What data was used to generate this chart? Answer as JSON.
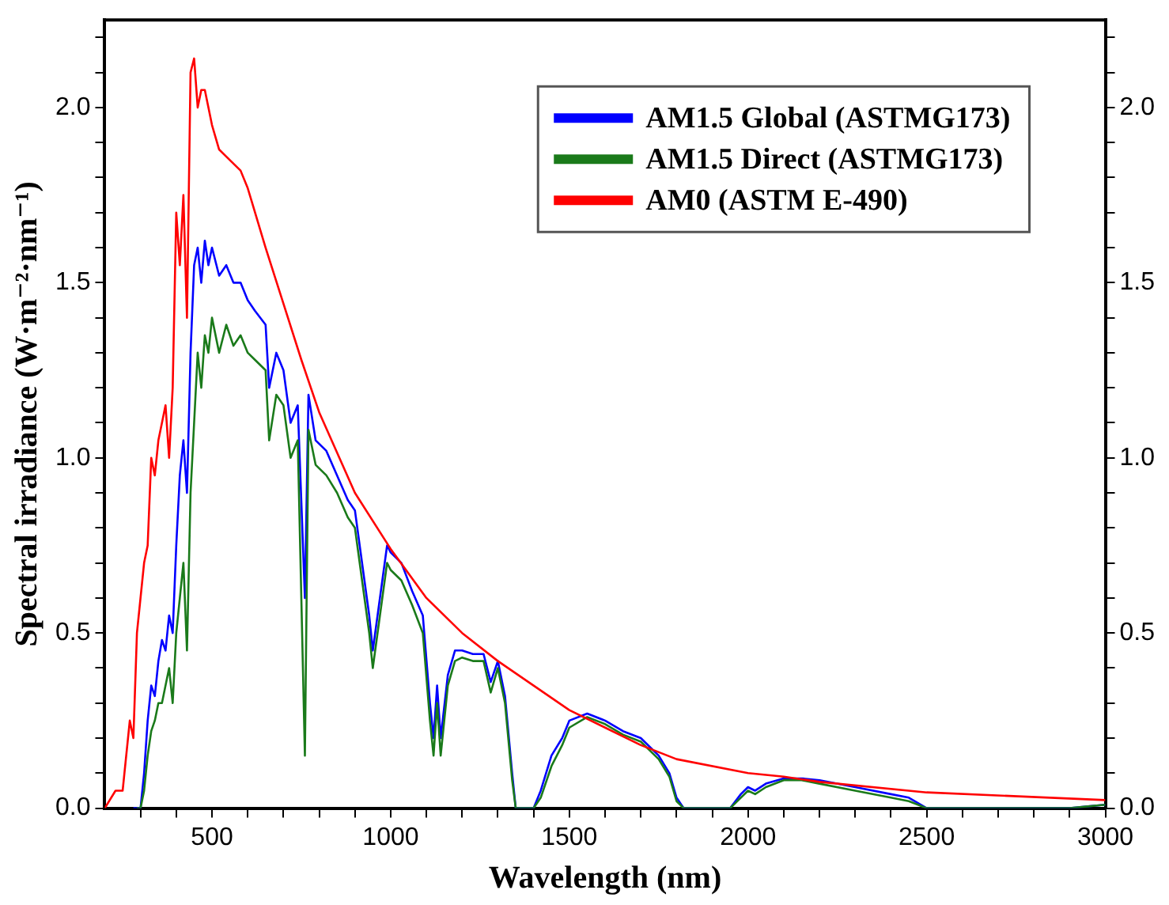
{
  "chart_data": {
    "type": "line",
    "xlabel": "Wavelength (nm)",
    "ylabel": "Spectral irradiance (W·m⁻²·nm⁻¹)",
    "xlim": [
      200,
      3000
    ],
    "xticks": [
      {
        "value": 300,
        "label": null
      },
      {
        "value": 400,
        "label": null
      },
      500,
      {
        "value": 600,
        "label": null
      },
      {
        "value": 700,
        "label": null
      },
      {
        "value": 800,
        "label": null
      },
      {
        "value": 900,
        "label": null
      },
      1000,
      {
        "value": 1100,
        "label": null
      },
      {
        "value": 1200,
        "label": null
      },
      {
        "value": 1300,
        "label": null
      },
      {
        "value": 1400,
        "label": null
      },
      1500,
      {
        "value": 1600,
        "label": null
      },
      {
        "value": 1700,
        "label": null
      },
      {
        "value": 1800,
        "label": null
      },
      {
        "value": 1900,
        "label": null
      },
      2000,
      {
        "value": 2100,
        "label": null
      },
      {
        "value": 2200,
        "label": null
      },
      {
        "value": 2300,
        "label": null
      },
      {
        "value": 2400,
        "label": null
      },
      2500,
      {
        "value": 2600,
        "label": null
      },
      {
        "value": 2700,
        "label": null
      },
      {
        "value": 2800,
        "label": null
      },
      {
        "value": 2900,
        "label": null
      },
      3000
    ],
    "ylim": [
      0,
      2.25
    ],
    "yticks": [
      {
        "value": 0,
        "label": "0.0"
      },
      {
        "value": 0.1,
        "label": null
      },
      {
        "value": 0.2,
        "label": null
      },
      {
        "value": 0.3,
        "label": null
      },
      {
        "value": 0.4,
        "label": null
      },
      0.5,
      {
        "value": 0.6,
        "label": null
      },
      {
        "value": 0.7,
        "label": null
      },
      {
        "value": 0.8,
        "label": null
      },
      {
        "value": 0.9,
        "label": null
      },
      {
        "value": 1,
        "label": "1.0"
      },
      {
        "value": 1.1,
        "label": null
      },
      {
        "value": 1.2,
        "label": null
      },
      {
        "value": 1.3,
        "label": null
      },
      {
        "value": 1.4,
        "label": null
      },
      1.5,
      {
        "value": 1.6,
        "label": null
      },
      {
        "value": 1.7,
        "label": null
      },
      {
        "value": 1.8,
        "label": null
      },
      {
        "value": 1.9,
        "label": null
      },
      {
        "value": 2,
        "label": "2.0"
      },
      {
        "value": 2.1,
        "label": null
      },
      {
        "value": 2.2,
        "label": null
      }
    ],
    "y2lim": [
      0,
      2.25
    ],
    "y2ticks": [
      {
        "value": 0,
        "label": "0.0"
      },
      {
        "value": 0.1,
        "label": null
      },
      {
        "value": 0.2,
        "label": null
      },
      {
        "value": 0.3,
        "label": null
      },
      {
        "value": 0.4,
        "label": null
      },
      0.5,
      {
        "value": 0.6,
        "label": null
      },
      {
        "value": 0.7,
        "label": null
      },
      {
        "value": 0.8,
        "label": null
      },
      {
        "value": 0.9,
        "label": null
      },
      {
        "value": 1,
        "label": "1.0"
      },
      {
        "value": 1.1,
        "label": null
      },
      {
        "value": 1.2,
        "label": null
      },
      {
        "value": 1.3,
        "label": null
      },
      {
        "value": 1.4,
        "label": null
      },
      1.5,
      {
        "value": 1.6,
        "label": null
      },
      {
        "value": 1.7,
        "label": null
      },
      {
        "value": 1.8,
        "label": null
      },
      {
        "value": 1.9,
        "label": null
      },
      {
        "value": 2,
        "label": "2.0"
      },
      {
        "value": 2.1,
        "label": null
      },
      {
        "value": 2.2,
        "label": null
      }
    ],
    "legend": "top right",
    "marker": "none",
    "series": [
      {
        "name": "AM1.5 Global (ASTMG173)",
        "color": "#0000ff",
        "x": [
          280,
          300,
          310,
          320,
          330,
          340,
          350,
          360,
          370,
          380,
          390,
          400,
          410,
          420,
          430,
          440,
          450,
          460,
          470,
          480,
          490,
          500,
          520,
          540,
          560,
          580,
          600,
          620,
          650,
          660,
          680,
          700,
          720,
          740,
          760,
          770,
          790,
          820,
          850,
          880,
          900,
          920,
          940,
          950,
          970,
          990,
          1000,
          1030,
          1060,
          1090,
          1110,
          1120,
          1130,
          1140,
          1160,
          1180,
          1200,
          1230,
          1260,
          1280,
          1300,
          1320,
          1340,
          1350,
          1400,
          1420,
          1450,
          1480,
          1500,
          1550,
          1600,
          1650,
          1700,
          1750,
          1780,
          1800,
          1820,
          1950,
          1980,
          2000,
          2020,
          2050,
          2100,
          2150,
          2200,
          2300,
          2400,
          2450,
          2500,
          2900,
          3000
        ],
        "values": [
          0,
          0,
          0.1,
          0.25,
          0.35,
          0.32,
          0.42,
          0.48,
          0.45,
          0.55,
          0.5,
          0.75,
          0.95,
          1.05,
          0.9,
          1.3,
          1.55,
          1.6,
          1.5,
          1.62,
          1.55,
          1.6,
          1.52,
          1.55,
          1.5,
          1.5,
          1.45,
          1.42,
          1.38,
          1.2,
          1.3,
          1.25,
          1.1,
          1.15,
          0.6,
          1.18,
          1.05,
          1.02,
          0.95,
          0.88,
          0.85,
          0.7,
          0.55,
          0.45,
          0.6,
          0.75,
          0.73,
          0.7,
          0.62,
          0.55,
          0.3,
          0.2,
          0.35,
          0.2,
          0.38,
          0.45,
          0.45,
          0.44,
          0.44,
          0.36,
          0.42,
          0.32,
          0.1,
          0,
          0,
          0.05,
          0.15,
          0.2,
          0.25,
          0.27,
          0.25,
          0.22,
          0.2,
          0.15,
          0.1,
          0.03,
          0,
          0,
          0.04,
          0.06,
          0.05,
          0.07,
          0.085,
          0.085,
          0.08,
          0.06,
          0.04,
          0.03,
          0,
          0,
          0.01
        ]
      },
      {
        "name": "AM1.5 Direct (ASTMG173)",
        "color": "#1a7a1a",
        "x": [
          290,
          300,
          310,
          320,
          330,
          340,
          350,
          360,
          370,
          380,
          390,
          400,
          410,
          420,
          430,
          440,
          450,
          460,
          470,
          480,
          490,
          500,
          520,
          540,
          560,
          580,
          600,
          620,
          650,
          660,
          680,
          700,
          720,
          740,
          760,
          770,
          790,
          820,
          850,
          880,
          900,
          920,
          940,
          950,
          970,
          990,
          1000,
          1030,
          1060,
          1090,
          1110,
          1120,
          1130,
          1140,
          1160,
          1180,
          1200,
          1230,
          1260,
          1280,
          1300,
          1320,
          1340,
          1350,
          1400,
          1420,
          1450,
          1480,
          1500,
          1550,
          1600,
          1650,
          1700,
          1750,
          1780,
          1800,
          1820,
          1950,
          1980,
          2000,
          2020,
          2050,
          2100,
          2150,
          2200,
          2300,
          2400,
          2450,
          2500,
          2900,
          3000
        ],
        "values": [
          0,
          0,
          0.05,
          0.15,
          0.22,
          0.25,
          0.3,
          0.3,
          0.35,
          0.4,
          0.3,
          0.5,
          0.6,
          0.7,
          0.45,
          0.9,
          1.1,
          1.3,
          1.2,
          1.35,
          1.3,
          1.4,
          1.3,
          1.38,
          1.32,
          1.35,
          1.3,
          1.28,
          1.25,
          1.05,
          1.18,
          1.15,
          1.0,
          1.05,
          0.15,
          1.08,
          0.98,
          0.95,
          0.9,
          0.83,
          0.8,
          0.65,
          0.5,
          0.4,
          0.55,
          0.7,
          0.68,
          0.65,
          0.58,
          0.5,
          0.25,
          0.15,
          0.3,
          0.15,
          0.35,
          0.42,
          0.43,
          0.42,
          0.42,
          0.33,
          0.4,
          0.3,
          0.08,
          0,
          0,
          0.03,
          0.12,
          0.18,
          0.23,
          0.26,
          0.24,
          0.21,
          0.19,
          0.14,
          0.09,
          0.02,
          0,
          0,
          0.03,
          0.05,
          0.04,
          0.06,
          0.08,
          0.08,
          0.07,
          0.05,
          0.03,
          0.02,
          0,
          0,
          0.01
        ]
      },
      {
        "name": "AM0 (ASTM E-490)",
        "color": "#ff0000",
        "x": [
          200,
          230,
          250,
          270,
          280,
          290,
          300,
          310,
          320,
          330,
          340,
          350,
          360,
          370,
          380,
          390,
          400,
          410,
          420,
          430,
          440,
          450,
          460,
          470,
          480,
          500,
          520,
          550,
          580,
          600,
          650,
          700,
          750,
          800,
          900,
          1000,
          1100,
          1200,
          1300,
          1400,
          1500,
          1600,
          1700,
          1800,
          2000,
          2100,
          2200,
          2500,
          3000
        ],
        "values": [
          0,
          0.05,
          0.05,
          0.25,
          0.2,
          0.5,
          0.6,
          0.7,
          0.75,
          1.0,
          0.95,
          1.05,
          1.1,
          1.15,
          1.0,
          1.2,
          1.7,
          1.55,
          1.75,
          1.4,
          2.1,
          2.14,
          2.0,
          2.05,
          2.05,
          1.95,
          1.88,
          1.85,
          1.82,
          1.77,
          1.6,
          1.44,
          1.28,
          1.13,
          0.9,
          0.74,
          0.6,
          0.5,
          0.42,
          0.35,
          0.28,
          0.23,
          0.18,
          0.14,
          0.1,
          0.09,
          0.075,
          0.045,
          0.023
        ]
      }
    ]
  }
}
